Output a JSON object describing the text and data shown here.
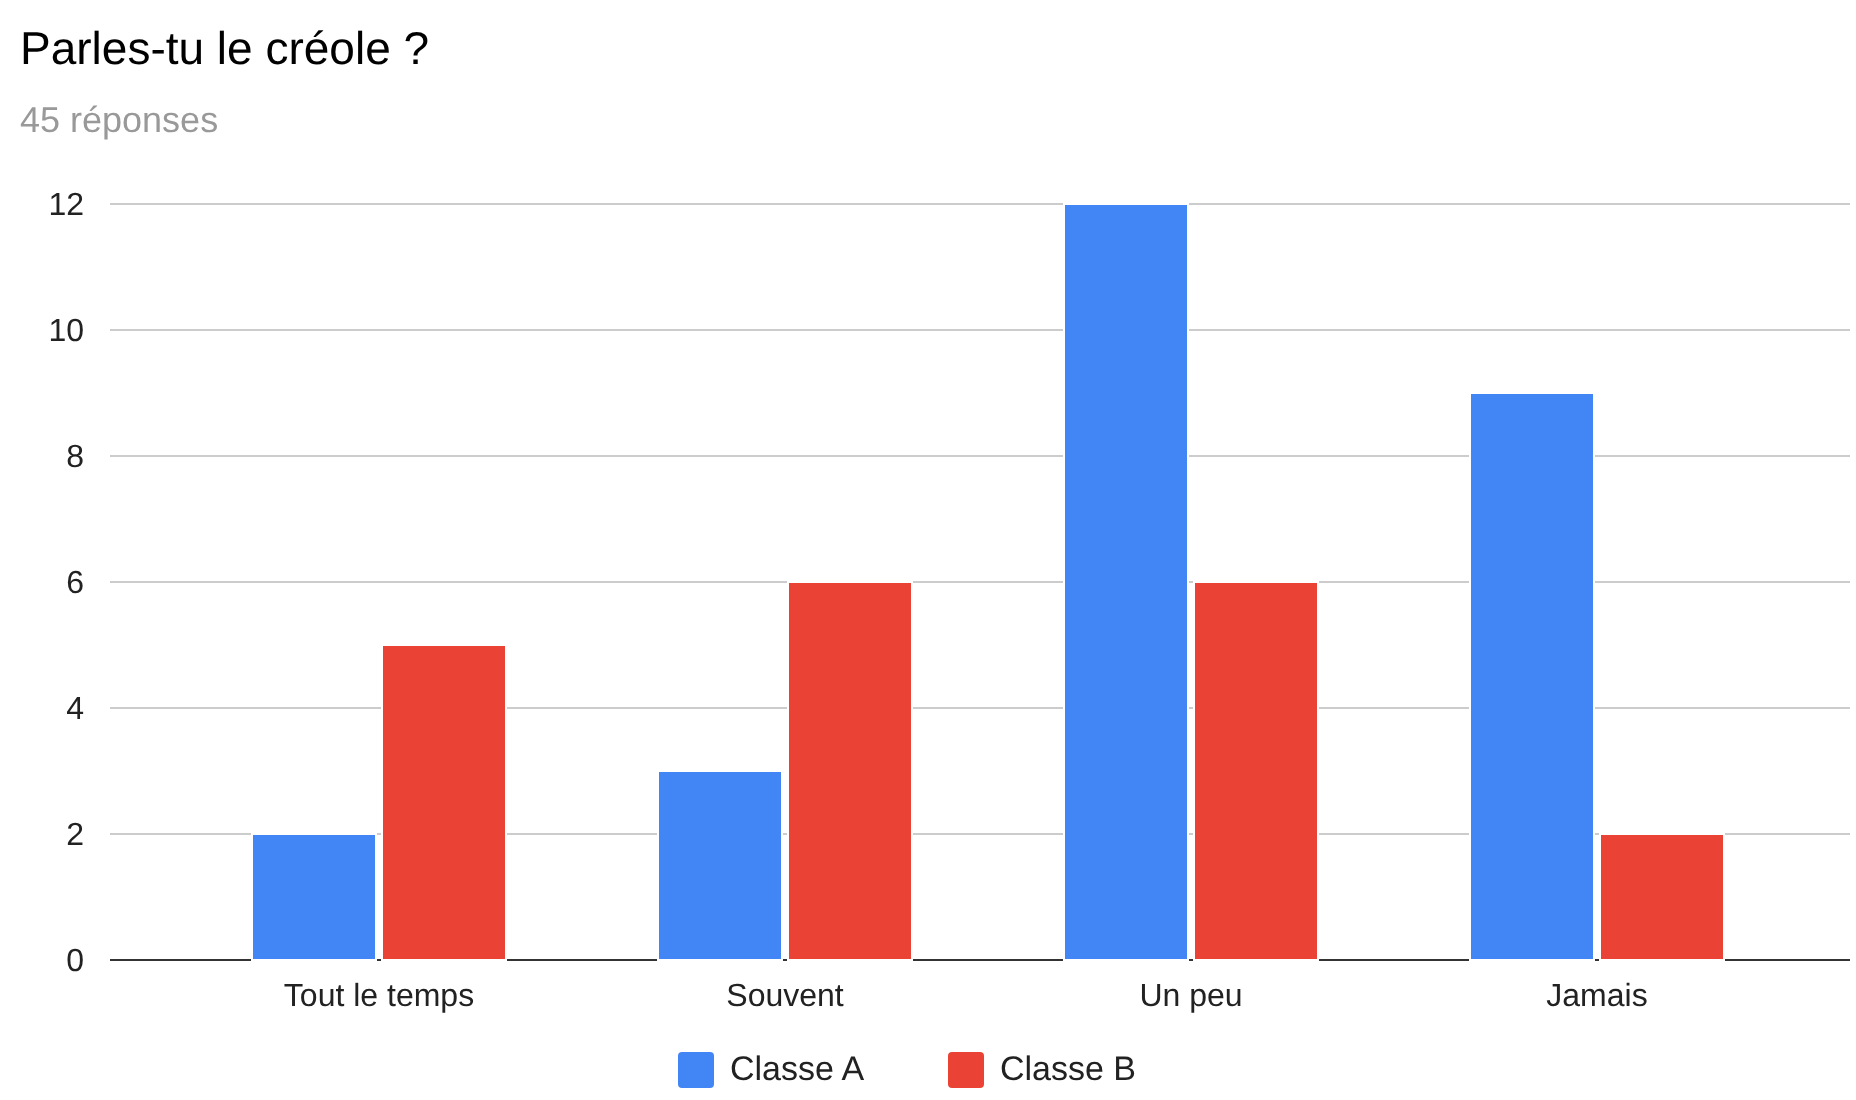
{
  "chart_data": {
    "type": "bar",
    "title": "Parles-tu le créole ?",
    "subtitle": "45 réponses",
    "categories": [
      "Tout le temps",
      "Souvent",
      "Un peu",
      "Jamais"
    ],
    "series": [
      {
        "name": "Classe A",
        "color": "#4285f4",
        "values": [
          2,
          3,
          12,
          9
        ]
      },
      {
        "name": "Classe B",
        "color": "#ea4335",
        "values": [
          5,
          6,
          6,
          2
        ]
      }
    ],
    "ylim": [
      0,
      12
    ],
    "yticks": [
      0,
      2,
      4,
      6,
      8,
      10,
      12
    ],
    "grid": "y",
    "legend": "bottom"
  }
}
